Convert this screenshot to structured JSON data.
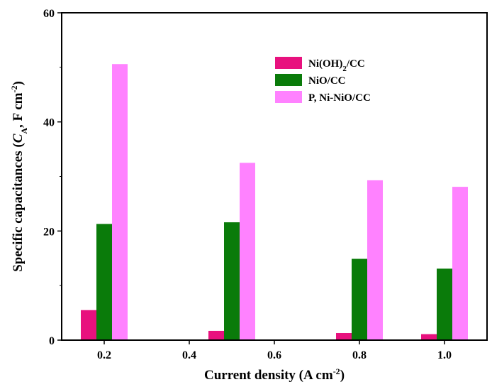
{
  "chart_data": {
    "type": "bar",
    "categories": [
      "0.2",
      "0.5",
      "0.8",
      "1.0"
    ],
    "x_values": [
      0.2,
      0.5,
      0.8,
      1.0
    ],
    "xlim": [
      0.1,
      1.1
    ],
    "xticks": [
      "0.2",
      "0.4",
      "0.6",
      "0.8",
      "1.0"
    ],
    "xtick_values": [
      0.2,
      0.4,
      0.6,
      0.8,
      1.0
    ],
    "ylim": [
      0,
      60
    ],
    "yticks": [
      "0",
      "20",
      "40",
      "60"
    ],
    "ytick_values": [
      0,
      20,
      40,
      60
    ],
    "grid": false,
    "legend_position": "top-right",
    "xlabel": {
      "main": "Current density (A cm",
      "sup": "-2",
      "end": ")"
    },
    "ylabel": {
      "pre": "Specific capacitances (",
      "italic": "C",
      "sub": "A",
      "post": ", F cm",
      "sup": "-2",
      "end": ")"
    },
    "series": [
      {
        "name": "Ni(OH)2/CC",
        "name_parts": {
          "pre": "Ni(OH)",
          "sub": "2",
          "post": "/CC"
        },
        "color": "#e8117e",
        "values": [
          5.5,
          1.7,
          1.3,
          1.1
        ]
      },
      {
        "name": "NiO/CC",
        "color": "#0a7b0a",
        "values": [
          21.3,
          21.6,
          14.9,
          13.1
        ]
      },
      {
        "name": "P, Ni-NiO/CC",
        "color": "#ff82ff",
        "values": [
          50.6,
          32.5,
          29.3,
          28.1
        ]
      }
    ]
  }
}
